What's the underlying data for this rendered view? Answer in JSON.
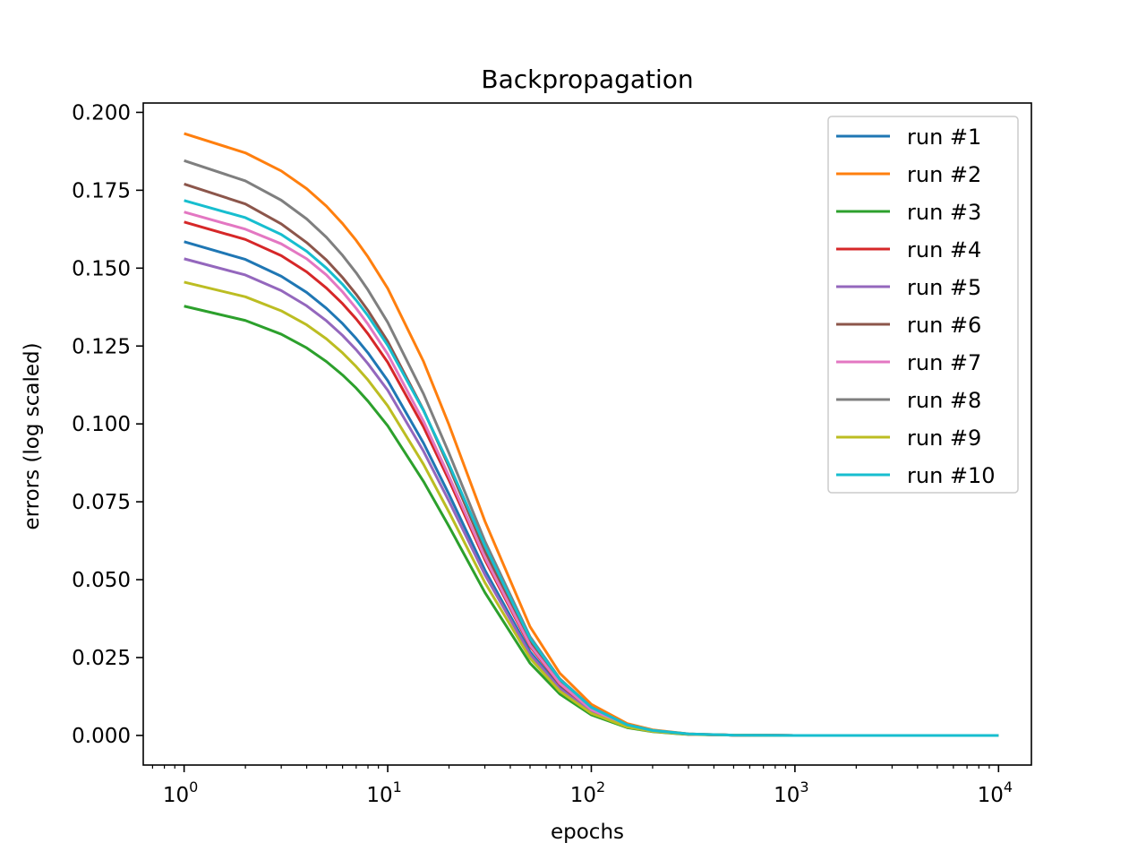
{
  "chart_data": {
    "type": "line",
    "title": "Backpropagation",
    "xlabel": "epochs",
    "ylabel": "errors (log scaled)",
    "xscale": "log",
    "xlim": [
      0.63,
      14500
    ],
    "ylim": [
      -0.0095,
      0.203
    ],
    "grid": false,
    "legend_position": "top-right",
    "x_ticks": [
      {
        "value": 1,
        "base": "10",
        "exp": "0"
      },
      {
        "value": 10,
        "base": "10",
        "exp": "1"
      },
      {
        "value": 100,
        "base": "10",
        "exp": "2"
      },
      {
        "value": 1000,
        "base": "10",
        "exp": "3"
      },
      {
        "value": 10000,
        "base": "10",
        "exp": "4"
      }
    ],
    "y_ticks": [
      {
        "value": 0.0,
        "label": "0.000"
      },
      {
        "value": 0.025,
        "label": "0.025"
      },
      {
        "value": 0.05,
        "label": "0.050"
      },
      {
        "value": 0.075,
        "label": "0.075"
      },
      {
        "value": 0.1,
        "label": "0.100"
      },
      {
        "value": 0.125,
        "label": "0.125"
      },
      {
        "value": 0.15,
        "label": "0.150"
      },
      {
        "value": 0.175,
        "label": "0.175"
      },
      {
        "value": 0.2,
        "label": "0.200"
      }
    ],
    "x": [
      1,
      2,
      3,
      4,
      5,
      6,
      7,
      8,
      10,
      15,
      20,
      30,
      50,
      70,
      100,
      150,
      200,
      300,
      500,
      1000,
      2000,
      5000,
      10000
    ],
    "series": [
      {
        "name": "run #1",
        "color": "#1f77b4",
        "values": [
          0.1585,
          0.1528,
          0.1474,
          0.1422,
          0.1371,
          0.1322,
          0.1274,
          0.1228,
          0.1139,
          0.0938,
          0.0774,
          0.0531,
          0.0269,
          0.0154,
          0.0077,
          0.0029,
          0.0014,
          0.0004,
          0.0001,
          0.0,
          0.0,
          0.0,
          0.0
        ]
      },
      {
        "name": "run #2",
        "color": "#ff7f0e",
        "values": [
          0.1932,
          0.187,
          0.1812,
          0.1755,
          0.1699,
          0.1643,
          0.1589,
          0.1536,
          0.1435,
          0.12,
          0.0997,
          0.0688,
          0.0349,
          0.02,
          0.01,
          0.0038,
          0.0018,
          0.0005,
          0.0001,
          0.0,
          0.0,
          0.0,
          0.0
        ]
      },
      {
        "name": "run #3",
        "color": "#2ca02c",
        "values": [
          0.1378,
          0.1332,
          0.1288,
          0.1244,
          0.12,
          0.1157,
          0.1115,
          0.1073,
          0.0994,
          0.0815,
          0.0671,
          0.0459,
          0.0232,
          0.0133,
          0.0066,
          0.0025,
          0.0012,
          0.0003,
          0.0001,
          0.0,
          0.0,
          0.0,
          0.0
        ]
      },
      {
        "name": "run #4",
        "color": "#d62728",
        "values": [
          0.1648,
          0.1592,
          0.154,
          0.1488,
          0.1436,
          0.1386,
          0.1337,
          0.1289,
          0.1198,
          0.099,
          0.0819,
          0.0564,
          0.0286,
          0.0164,
          0.0082,
          0.0031,
          0.0015,
          0.0004,
          0.0001,
          0.0,
          0.0,
          0.0,
          0.0
        ]
      },
      {
        "name": "run #5",
        "color": "#9467bd",
        "values": [
          0.153,
          0.1478,
          0.1428,
          0.1379,
          0.1331,
          0.1284,
          0.1238,
          0.1193,
          0.1108,
          0.0912,
          0.0752,
          0.0516,
          0.0261,
          0.015,
          0.0075,
          0.0028,
          0.0013,
          0.0004,
          0.0001,
          0.0,
          0.0,
          0.0,
          0.0
        ]
      },
      {
        "name": "run #6",
        "color": "#8c564b",
        "values": [
          0.177,
          0.1706,
          0.1642,
          0.1582,
          0.1526,
          0.147,
          0.1416,
          0.1364,
          0.1265,
          0.1044,
          0.0862,
          0.0592,
          0.03,
          0.0172,
          0.0086,
          0.0032,
          0.0015,
          0.0004,
          0.0001,
          0.0,
          0.0,
          0.0,
          0.0
        ]
      },
      {
        "name": "run #7",
        "color": "#e377c2",
        "values": [
          0.168,
          0.1625,
          0.1578,
          0.153,
          0.1478,
          0.1424,
          0.1371,
          0.132,
          0.1224,
          0.1008,
          0.0832,
          0.0572,
          0.029,
          0.0167,
          0.0083,
          0.0031,
          0.0015,
          0.0004,
          0.0001,
          0.0,
          0.0,
          0.0,
          0.0
        ]
      },
      {
        "name": "run #8",
        "color": "#7f7f7f",
        "values": [
          0.1845,
          0.178,
          0.1718,
          0.1658,
          0.1599,
          0.1541,
          0.1485,
          0.143,
          0.1326,
          0.1096,
          0.0906,
          0.0624,
          0.0317,
          0.0182,
          0.0091,
          0.0034,
          0.0016,
          0.0005,
          0.0001,
          0.0,
          0.0,
          0.0,
          0.0
        ]
      },
      {
        "name": "run #9",
        "color": "#bcbd22",
        "values": [
          0.1455,
          0.1408,
          0.1363,
          0.1318,
          0.1273,
          0.1228,
          0.1184,
          0.1141,
          0.1058,
          0.087,
          0.0717,
          0.0491,
          0.0248,
          0.0142,
          0.0071,
          0.0027,
          0.0013,
          0.0004,
          0.0001,
          0.0,
          0.0,
          0.0,
          0.0
        ]
      },
      {
        "name": "run #10",
        "color": "#17becf",
        "values": [
          0.1717,
          0.1662,
          0.1608,
          0.1554,
          0.15,
          0.1448,
          0.1397,
          0.1347,
          0.1252,
          0.1042,
          0.087,
          0.0609,
          0.0312,
          0.018,
          0.009,
          0.0034,
          0.0016,
          0.0005,
          0.0001,
          0.0,
          0.0,
          0.0,
          0.0
        ]
      }
    ]
  }
}
